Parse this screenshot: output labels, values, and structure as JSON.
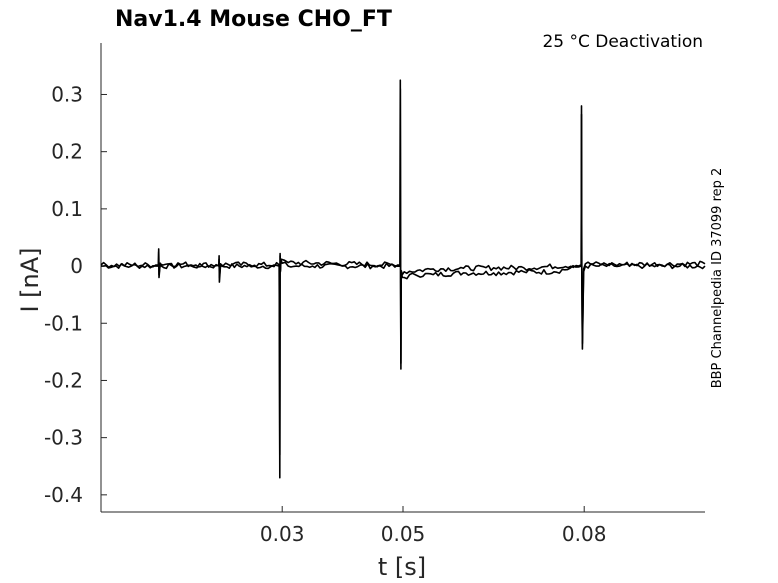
{
  "chart_data": {
    "type": "line",
    "title": "Nav1.4  Mouse  CHO_FT",
    "subtitle": "25 °C  Deactivation",
    "side_label": "BBP Channelpedia ID 37099 rep 2",
    "xlabel": "t [s]",
    "ylabel": "I [nA]",
    "xlim": [
      0.0,
      0.1
    ],
    "ylim": [
      -0.43,
      0.39
    ],
    "xticks": [
      0.03,
      0.05,
      0.08
    ],
    "xtick_labels": [
      "0.03",
      "0.05",
      "0.08"
    ],
    "yticks": [
      0.3,
      0.2,
      0.1,
      0,
      -0.1,
      -0.2,
      -0.3,
      -0.4
    ],
    "ytick_labels": [
      "0.3",
      "0.2",
      "0.1",
      "0",
      "-0.1",
      "-0.2",
      "-0.3",
      "-0.4"
    ],
    "grid": false,
    "line_color": "#000000",
    "series": [
      {
        "x": [
          0.0,
          0.005,
          0.0095,
          0.00955,
          0.0096,
          0.0098,
          0.01,
          0.015,
          0.0195,
          0.01955,
          0.0196,
          0.0198,
          0.02,
          0.025,
          0.0295,
          0.02955,
          0.0296,
          0.02965,
          0.0297,
          0.0298,
          0.03,
          0.031,
          0.035,
          0.04,
          0.045,
          0.0495,
          0.04955,
          0.0496,
          0.04965,
          0.0497,
          0.0499,
          0.0502,
          0.052,
          0.055,
          0.06,
          0.065,
          0.07,
          0.075,
          0.0795,
          0.07955,
          0.0796,
          0.0797,
          0.0799,
          0.0802,
          0.082,
          0.085,
          0.09,
          0.095,
          0.1
        ],
        "y": [
          0.0,
          0.0,
          0.0,
          0.03,
          -0.02,
          0.005,
          0.0,
          0.0,
          0.0,
          0.018,
          -0.028,
          0.004,
          0.0,
          0.0,
          0.0,
          -0.19,
          -0.37,
          0.022,
          -0.01,
          0.01,
          0.005,
          0.0,
          0.0,
          0.0,
          0.0,
          0.0,
          0.325,
          -0.03,
          -0.18,
          -0.01,
          -0.02,
          -0.02,
          -0.015,
          -0.015,
          -0.012,
          -0.012,
          -0.01,
          -0.01,
          0.0,
          0.28,
          -0.02,
          -0.145,
          -0.01,
          0.0,
          0.0,
          0.0,
          0.0,
          0.0,
          0.0
        ]
      },
      {
        "x": [
          0.0,
          0.0095,
          0.00955,
          0.0096,
          0.0098,
          0.0195,
          0.01955,
          0.0196,
          0.0198,
          0.0295,
          0.02955,
          0.0296,
          0.02965,
          0.0297,
          0.0298,
          0.031,
          0.0495,
          0.04955,
          0.0496,
          0.04965,
          0.0497,
          0.0499,
          0.0502,
          0.055,
          0.06,
          0.065,
          0.07,
          0.0795,
          0.07955,
          0.0796,
          0.0797,
          0.0799,
          0.0802,
          0.085,
          0.1
        ],
        "y": [
          0.002,
          0.002,
          0.025,
          -0.015,
          0.004,
          0.002,
          0.012,
          -0.02,
          0.003,
          0.002,
          -0.15,
          -0.33,
          0.018,
          -0.008,
          0.012,
          0.006,
          0.002,
          0.31,
          -0.025,
          -0.17,
          -0.008,
          -0.015,
          -0.01,
          -0.005,
          -0.004,
          -0.003,
          -0.003,
          0.002,
          0.265,
          -0.015,
          -0.135,
          -0.005,
          0.004,
          0.003,
          0.004
        ]
      }
    ]
  }
}
